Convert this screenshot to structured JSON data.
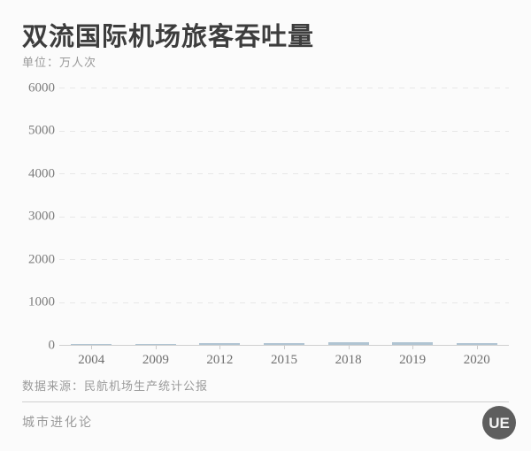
{
  "header": {
    "title": "双流国际机场旅客吞吐量",
    "unit_label": "单位：万人次"
  },
  "chart_data": {
    "type": "bar",
    "title": "双流国际机场旅客吞吐量",
    "categories": [
      "2004",
      "2009",
      "2012",
      "2015",
      "2018",
      "2019",
      "2020"
    ],
    "values": [
      12,
      22,
      33,
      44,
      56,
      58,
      43
    ],
    "xlabel": "",
    "ylabel": "万人次",
    "ylim": [
      0,
      6000
    ],
    "yticks": [
      0,
      1000,
      2000,
      3000,
      4000,
      5000,
      6000
    ],
    "grid": "horizontal-dashed",
    "legend": "none",
    "bar_color": "#b0c4d2",
    "axis_color": "#cfcfcf"
  },
  "footer": {
    "source": "数据来源：民航机场生产统计公报",
    "brand": "城市进化论",
    "logo_text": "UE"
  },
  "colors": {
    "background": "#fbfbfb",
    "title_text": "#3d3d3d",
    "muted_text": "#9a9a9a",
    "axis_label_text": "#7d7d7d",
    "bar": "#b0c4d2",
    "gridline": "#e7e7e7",
    "logo_bg": "#5e5e5e"
  }
}
